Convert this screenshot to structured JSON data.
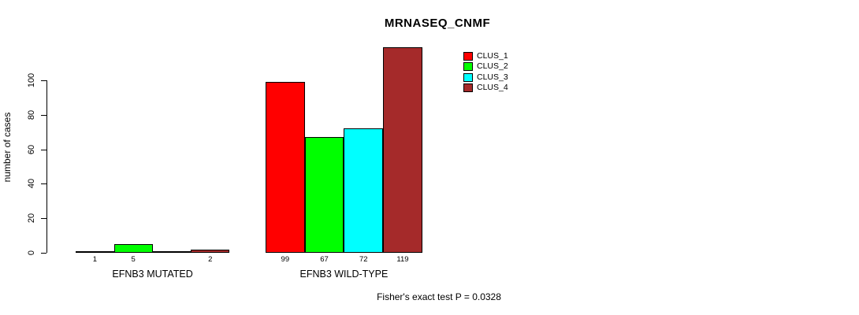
{
  "title": "MRNASEQ_CNMF",
  "ylabel": "number of cases",
  "footer": "Fisher's exact test P = 0.0328",
  "legend": [
    {
      "label": "CLUS_1",
      "color": "#FF0000"
    },
    {
      "label": "CLUS_2",
      "color": "#00FF00"
    },
    {
      "label": "CLUS_3",
      "color": "#00FFFF"
    },
    {
      "label": "CLUS_4",
      "color": "#A52A2A"
    }
  ],
  "chart_data": {
    "type": "bar",
    "title": "MRNASEQ_CNMF",
    "xlabel": "",
    "ylabel": "number of cases",
    "categories": [
      "EFNB3 MUTATED",
      "EFNB3 WILD-TYPE"
    ],
    "series": [
      {
        "name": "CLUS_1",
        "color": "#FF0000",
        "values": [
          1,
          99
        ]
      },
      {
        "name": "CLUS_2",
        "color": "#00FF00",
        "values": [
          5,
          67
        ]
      },
      {
        "name": "CLUS_3",
        "color": "#00FFFF",
        "values": [
          0,
          72
        ]
      },
      {
        "name": "CLUS_4",
        "color": "#A52A2A",
        "values": [
          2,
          119
        ]
      }
    ],
    "bar_value_labels_shown": [
      "1",
      "5",
      "2",
      "99",
      "67",
      "72",
      "119"
    ],
    "yticks": [
      0,
      20,
      40,
      60,
      80,
      100
    ],
    "ylim": [
      0,
      119
    ],
    "grid": false,
    "legend_position": "top-right",
    "legend_entries": [
      "CLUS_1",
      "CLUS_2",
      "CLUS_3",
      "CLUS_4"
    ],
    "annotation": "Fisher's exact test P = 0.0328"
  }
}
